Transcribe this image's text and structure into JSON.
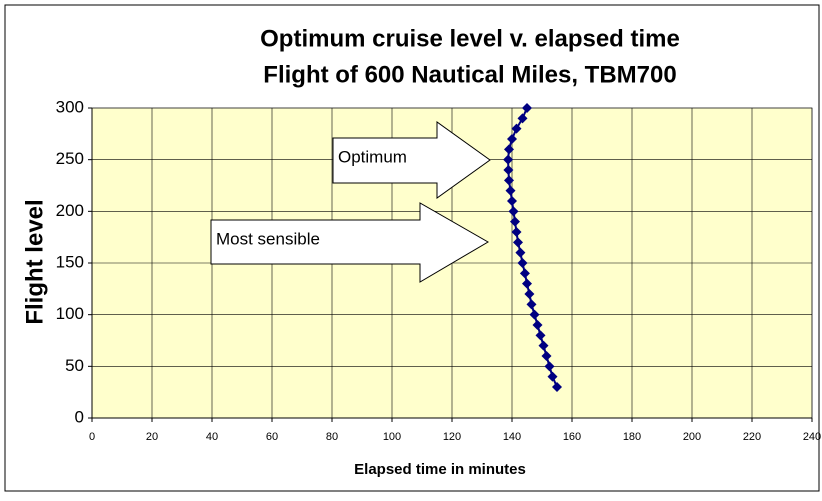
{
  "chart_data": {
    "type": "scatter",
    "title": "Optimum cruise level v. elapsed time",
    "subtitle": "Flight of 600 Nautical Miles, TBM700",
    "x_label": "Elapsed time in minutes",
    "y_label": "Flight level",
    "annotations": [
      "Optimum",
      "Most sensible"
    ],
    "x": [
      155,
      153.5,
      152.5,
      151.5,
      150.5,
      149.5,
      148.5,
      147.5,
      146.5,
      145.8,
      145,
      144.3,
      143.5,
      142.8,
      142,
      141.5,
      141,
      140.5,
      140,
      139.5,
      139,
      138.8,
      138.7,
      139,
      140,
      141.5,
      143.5,
      145
    ],
    "series": [
      {
        "color": "#000080",
        "values": [
          30,
          40,
          50,
          60,
          70,
          80,
          90,
          100,
          110,
          120,
          130,
          140,
          150,
          160,
          170,
          180,
          190,
          200,
          210,
          220,
          230,
          240,
          250,
          260,
          270,
          280,
          290,
          300
        ]
      }
    ],
    "xlim": [
      0,
      240
    ],
    "xticks": [
      0,
      20,
      40,
      60,
      80,
      100,
      120,
      140,
      160,
      180,
      200,
      220,
      240
    ],
    "ylim": [
      0,
      300
    ],
    "yticks": [
      0,
      50,
      100,
      150,
      200,
      250,
      300
    ],
    "grid": true
  }
}
